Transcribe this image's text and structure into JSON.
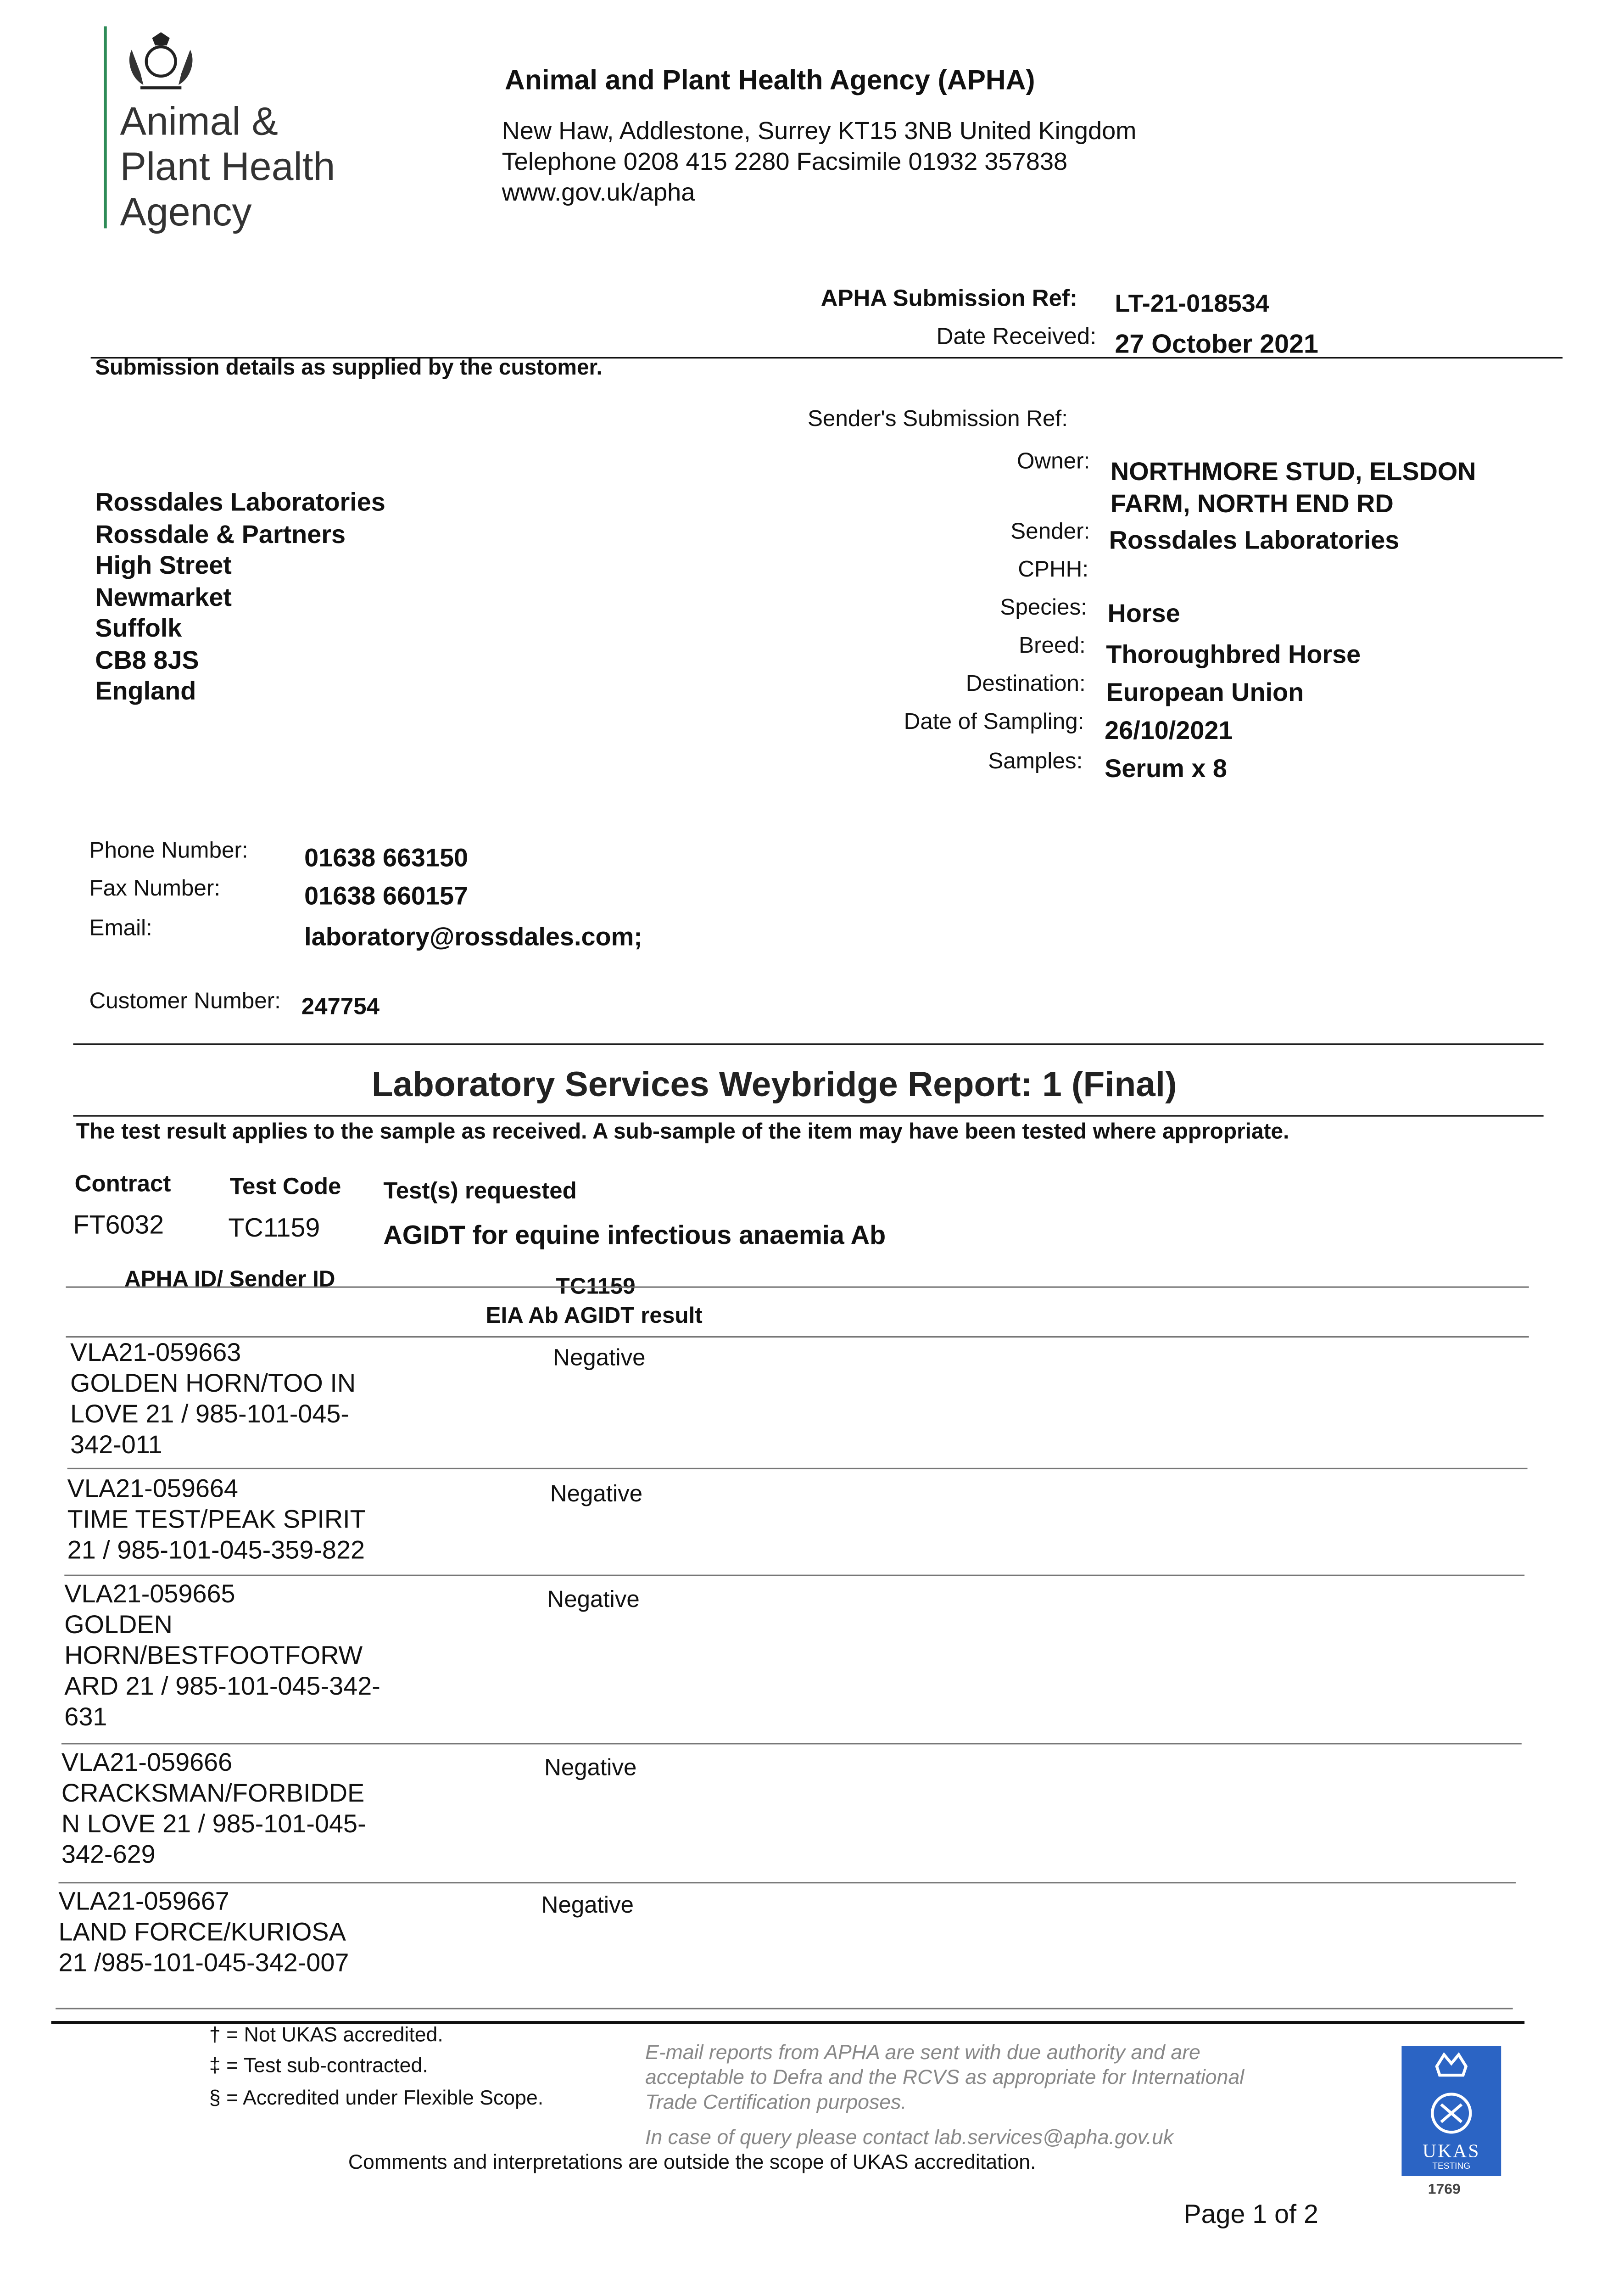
{
  "logo": {
    "lines": [
      "Animal &",
      "Plant Health",
      "Agency"
    ],
    "icon": "royal-crest-icon",
    "accent": "#2e8b57"
  },
  "header": {
    "title": "Animal and Plant Health Agency (APHA)",
    "address": "New Haw, Addlestone, Surrey KT15 3NB United Kingdom",
    "phone_line": "Telephone 0208 415 2280 Facsimile 01932 357838",
    "website": "www.gov.uk/apha"
  },
  "submission": {
    "ref_label": "APHA Submission Ref:",
    "ref_value": "LT-21-018534",
    "date_label": "Date Received:",
    "date_value": "27 October 2021",
    "note": "Submission details as supplied by the customer."
  },
  "details": {
    "sender_ref_label": "Sender's Submission Ref:",
    "fields": [
      {
        "label": "Owner:",
        "value": [
          "NORTHMORE STUD, ELSDON",
          "FARM, NORTH END RD"
        ]
      },
      {
        "label": "Sender:",
        "value": [
          "Rossdales Laboratories"
        ]
      },
      {
        "label": "CPHH:",
        "value": [
          ""
        ]
      },
      {
        "label": "Species:",
        "value": [
          "Horse"
        ]
      },
      {
        "label": "Breed:",
        "value": [
          "Thoroughbred Horse"
        ]
      },
      {
        "label": "Destination:",
        "value": [
          "European Union"
        ]
      },
      {
        "label": "Date of Sampling:",
        "value": [
          "26/10/2021"
        ]
      },
      {
        "label": "Samples:",
        "value": [
          "Serum x 8"
        ]
      }
    ]
  },
  "address": [
    "Rossdales Laboratories",
    "Rossdale & Partners",
    "High Street",
    "Newmarket",
    "Suffolk",
    "CB8 8JS",
    "England"
  ],
  "contact": {
    "phone_label": "Phone Number:",
    "phone": "01638 663150",
    "fax_label": "Fax Number:",
    "fax": "01638 660157",
    "email_label": "Email:",
    "email": "laboratory@rossdales.com;",
    "customer_label": "Customer Number:",
    "customer": "247754"
  },
  "report": {
    "title": "Laboratory Services Weybridge Report: 1 (Final)",
    "note": "The test result applies to the sample as received. A sub-sample of the item may have been tested where appropriate.",
    "headers": {
      "contract": "Contract",
      "test_code": "Test Code",
      "tests": "Test(s) requested"
    },
    "contract": "FT6032",
    "test_code": "TC1159",
    "tests": "AGIDT for equine infectious anaemia Ab"
  },
  "results": {
    "col_id": "APHA ID/ Sender ID",
    "col_code": "TC1159",
    "col_result": "EIA Ab AGIDT result",
    "rows": [
      {
        "id": [
          "VLA21-059663",
          "GOLDEN HORN/TOO IN",
          "LOVE 21 / 985-101-045-",
          "342-011"
        ],
        "result": "Negative"
      },
      {
        "id": [
          "VLA21-059664",
          "TIME TEST/PEAK SPIRIT",
          "21 / 985-101-045-359-822"
        ],
        "result": "Negative"
      },
      {
        "id": [
          "VLA21-059665",
          "GOLDEN",
          "HORN/BESTFOOTFORW",
          "ARD 21 / 985-101-045-342-",
          "631"
        ],
        "result": "Negative"
      },
      {
        "id": [
          "VLA21-059666",
          "CRACKSMAN/FORBIDDE",
          "N LOVE 21 / 985-101-045-",
          "342-629"
        ],
        "result": "Negative"
      },
      {
        "id": [
          "VLA21-059667",
          "LAND FORCE/KURIOSA",
          "21 /985-101-045-342-007"
        ],
        "result": "Negative"
      }
    ]
  },
  "footer": {
    "notes": [
      "† = Not UKAS accredited.",
      "‡ = Test sub-contracted.",
      "§ = Accredited under Flexible Scope."
    ],
    "email_notice": [
      "E-mail reports from APHA are sent with due authority and are",
      "acceptable to Defra and the RCVS as appropriate for International",
      "Trade Certification purposes."
    ],
    "query": "In case of query please contact lab.services@apha.gov.uk",
    "comments": "Comments and interpretations are outside the scope of UKAS accreditation.",
    "ukas": {
      "text": "UKAS",
      "sub": "TESTING",
      "number": "1769",
      "color": "#2b64c4"
    },
    "page": "Page 1 of 2"
  }
}
